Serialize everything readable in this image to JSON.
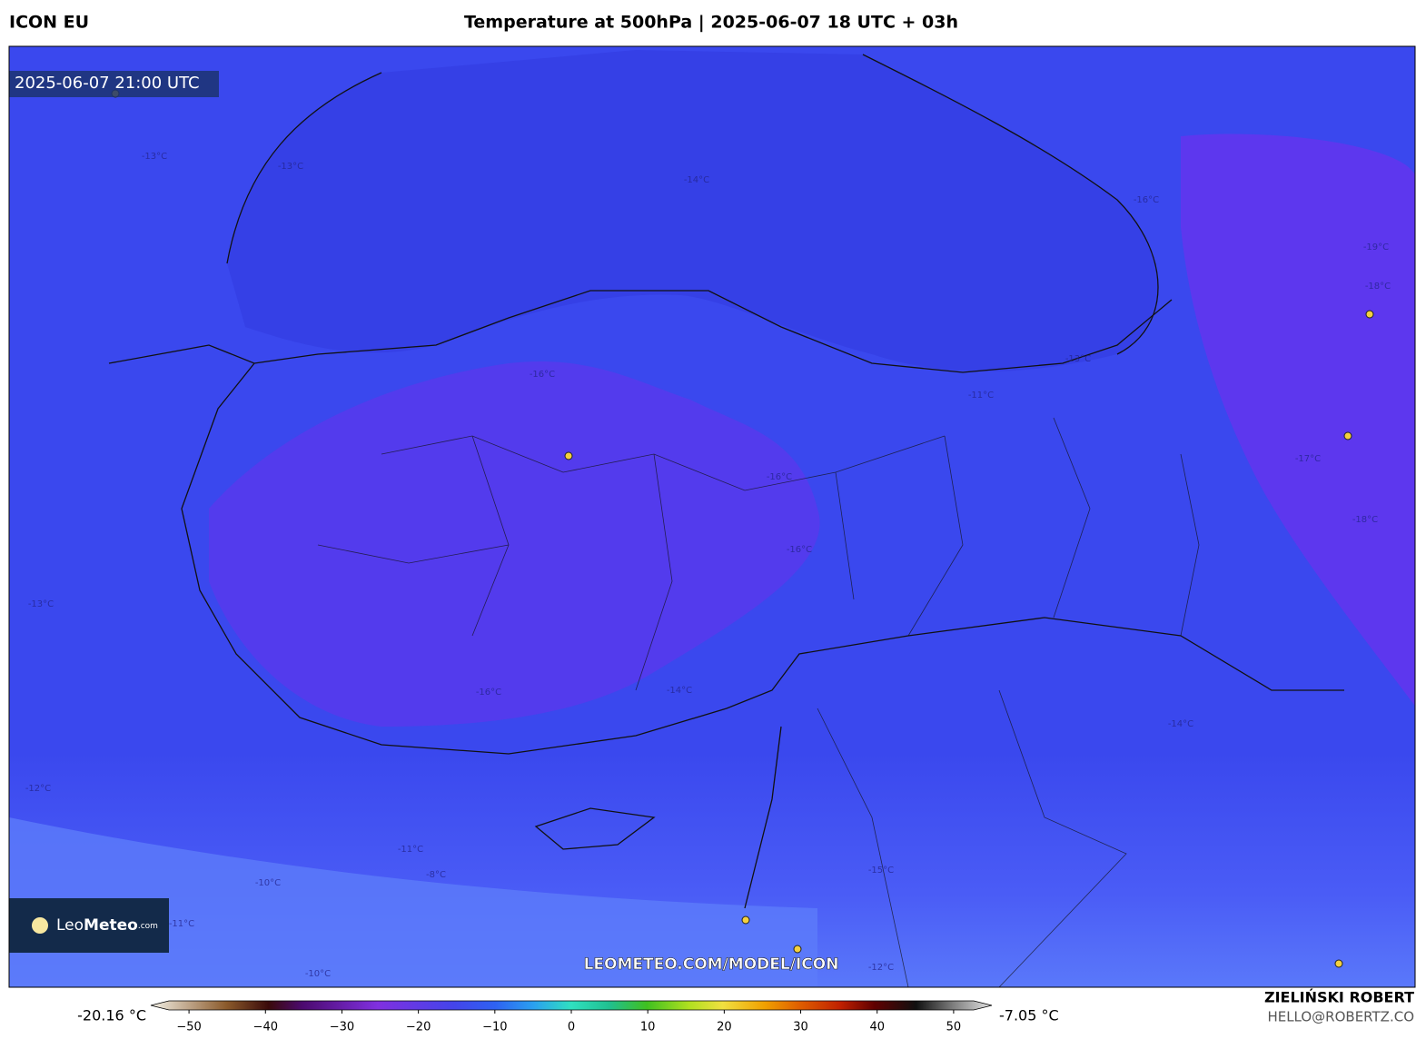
{
  "header": {
    "model": "ICON EU",
    "title": "Temperature at 500hPa | 2025-06-07 18 UTC + 03h"
  },
  "map": {
    "valid_time": "2025-06-07 21:00 UTC",
    "logo": {
      "brand_light": "Leo",
      "brand_bold": "Meteo",
      "suffix": ".com"
    },
    "url": "LEOMETEO.COM/MODEL/ICON",
    "contour_labels": [
      "-14°C",
      "-13°C",
      "-13°C",
      "-16°C",
      "-19°C",
      "-18°C",
      "-16°C",
      "-13°C",
      "-11°C",
      "-16°C",
      "-17°C",
      "-18°C",
      "-16°C",
      "-14°C",
      "-16°C",
      "-13°C",
      "-12°C",
      "-11°C",
      "-10°C",
      "-8°C",
      "-11°C",
      "-10°C",
      "-12°C",
      "-15°C",
      "-14°C"
    ]
  },
  "colorbar": {
    "min_label": "-20.16 °C",
    "max_label": "-7.05 °C",
    "lim": [
      -55,
      55
    ],
    "ticks": [
      {
        "value": -50,
        "label": "−50"
      },
      {
        "value": -40,
        "label": "−40"
      },
      {
        "value": -30,
        "label": "−30"
      },
      {
        "value": -20,
        "label": "−20"
      },
      {
        "value": -10,
        "label": "−10"
      },
      0,
      10,
      20,
      30,
      40,
      50
    ]
  },
  "footer": {
    "author": "ZIELIŃSKI ROBERT",
    "email": "HELLO@ROBERTZ.CO"
  }
}
